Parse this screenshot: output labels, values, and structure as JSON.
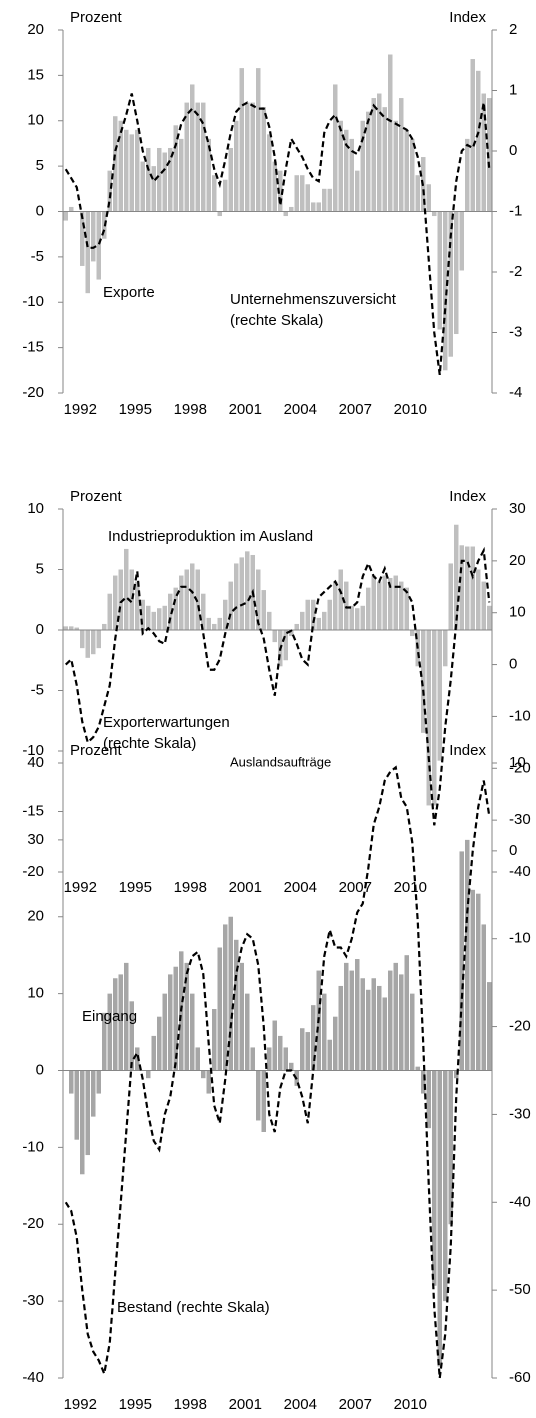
{
  "chart_data": [
    {
      "type": "combo",
      "left_axis_label": "Prozent",
      "right_axis_label": "Index",
      "categories": [
        null,
        null,
        null,
        "1992",
        null,
        null,
        null,
        null,
        null,
        null,
        null,
        null,
        null,
        "1995",
        null,
        null,
        null,
        null,
        null,
        null,
        null,
        null,
        null,
        "1998",
        null,
        null,
        null,
        null,
        null,
        null,
        null,
        null,
        null,
        "2001",
        null,
        null,
        null,
        null,
        null,
        null,
        null,
        null,
        null,
        "2004",
        null,
        null,
        null,
        null,
        null,
        null,
        null,
        null,
        null,
        "2007",
        null,
        null,
        null,
        null,
        null,
        null,
        null,
        null,
        null,
        "2010",
        null,
        null,
        null,
        null,
        null,
        null,
        null,
        null,
        null,
        null,
        null,
        null,
        null,
        null
      ],
      "ylim": [
        -20,
        20
      ],
      "yticks": [
        -20,
        -15,
        -10,
        -5,
        0,
        5,
        10,
        15,
        20
      ],
      "y2lim": [
        -4,
        2
      ],
      "y2ticks": [
        -4,
        -3,
        -2,
        -1,
        0,
        1,
        2
      ],
      "series": [
        {
          "name": "Exporte",
          "type": "bar",
          "color": "#bfbfbf",
          "values": [
            -1,
            0.5,
            0,
            -6,
            -9,
            -5.5,
            -7.5,
            -3,
            4.5,
            10.5,
            10,
            9,
            8.5,
            9,
            5.5,
            7,
            5,
            7,
            6.5,
            7,
            9.5,
            8,
            12,
            14,
            12,
            12,
            8,
            4,
            -0.5,
            3.5,
            7,
            10,
            15.8,
            12,
            12,
            15.8,
            11.5,
            8.5,
            5.5,
            4.5,
            -0.5,
            0.5,
            4,
            4,
            3,
            1,
            1,
            2.5,
            2.5,
            14,
            10,
            9,
            8,
            4.5,
            10,
            11,
            12.5,
            13,
            11.5,
            17.3,
            10,
            12.5,
            9,
            8,
            4,
            6,
            3,
            -0.5,
            -13,
            -17.5,
            -16,
            -13.5,
            -6.5,
            8,
            16.8,
            15.5,
            13,
            12.5
          ]
        },
        {
          "name": "Unternehmenszuversicht (rechte Skala)",
          "type": "line",
          "axis": "y2",
          "color": "#000000",
          "dashed": true,
          "values": [
            -0.3,
            -0.45,
            -0.6,
            -1.1,
            -1.6,
            -1.6,
            -1.55,
            -1.3,
            -0.8,
            0,
            0.3,
            0.6,
            0.95,
            0.5,
            0,
            -0.3,
            -0.5,
            -0.4,
            -0.3,
            -0.15,
            0.1,
            0.45,
            0.6,
            0.7,
            0.6,
            0.45,
            0.1,
            -0.3,
            -0.55,
            -0.15,
            0.3,
            0.65,
            0.75,
            0.8,
            0.75,
            0.7,
            0.7,
            0.4,
            -0.1,
            -0.9,
            -0.3,
            0.2,
            0.05,
            -0.1,
            -0.3,
            -0.45,
            -0.5,
            0.3,
            0.5,
            0.6,
            0.35,
            0.1,
            0,
            -0.05,
            0.2,
            0.5,
            0.75,
            0.65,
            0.55,
            0.5,
            0.45,
            0.4,
            0.35,
            0.2,
            -0.1,
            -0.6,
            -1.8,
            -3,
            -3.7,
            -2.6,
            -1.4,
            -0.5,
            0,
            0.1,
            0.05,
            0.3,
            0.8,
            -0.3
          ]
        }
      ]
    },
    {
      "type": "combo",
      "left_axis_label": "Prozent",
      "right_axis_label": "Index",
      "categories": [
        null,
        null,
        null,
        "1992",
        null,
        null,
        null,
        null,
        null,
        null,
        null,
        null,
        null,
        "1995",
        null,
        null,
        null,
        null,
        null,
        null,
        null,
        null,
        null,
        "1998",
        null,
        null,
        null,
        null,
        null,
        null,
        null,
        null,
        null,
        "2001",
        null,
        null,
        null,
        null,
        null,
        null,
        null,
        null,
        null,
        "2004",
        null,
        null,
        null,
        null,
        null,
        null,
        null,
        null,
        null,
        "2007",
        null,
        null,
        null,
        null,
        null,
        null,
        null,
        null,
        null,
        "2010",
        null,
        null,
        null,
        null,
        null,
        null,
        null,
        null,
        null,
        null,
        null,
        null,
        null,
        null
      ],
      "ylim": [
        -20,
        10
      ],
      "yticks": [
        -20,
        -15,
        -10,
        -5,
        0,
        5,
        10
      ],
      "y2lim": [
        -40,
        30
      ],
      "y2ticks": [
        -40,
        -30,
        -20,
        -10,
        0,
        10,
        20,
        30
      ],
      "series": [
        {
          "name": "Industrieproduktion im Ausland",
          "type": "bar",
          "color": "#bfbfbf",
          "values": [
            0.3,
            0.3,
            0.2,
            -1.5,
            -2.3,
            -2,
            -1.5,
            0.5,
            3,
            4.5,
            5,
            6.7,
            5,
            4,
            2.5,
            2,
            1.5,
            1.8,
            2,
            3,
            3.5,
            4.5,
            5,
            5.5,
            5,
            3,
            1,
            0.5,
            1,
            2.5,
            4,
            5.5,
            6,
            6.5,
            6.2,
            5,
            3.3,
            1.5,
            -1,
            -3,
            -2.5,
            -0.5,
            0.5,
            1.5,
            2.5,
            2.5,
            1,
            1.5,
            2.5,
            4,
            5,
            4,
            2,
            1.8,
            2,
            3.5,
            4.5,
            4,
            4.5,
            4.3,
            4.5,
            4,
            3.5,
            -0.5,
            -3,
            -8.5,
            -14.5,
            -14.5,
            -10.8,
            -3,
            5.5,
            8.7,
            7,
            6.9,
            6.9,
            5,
            4,
            2
          ]
        },
        {
          "name": "Exporterwartungen (rechte Skala)",
          "type": "line",
          "axis": "y2",
          "color": "#000000",
          "dashed": true,
          "values": [
            0,
            1,
            -4,
            -11,
            -15,
            -14,
            -12,
            -8,
            -4,
            5,
            12,
            13,
            12,
            18,
            6,
            7,
            6,
            4.5,
            4,
            9,
            13,
            15,
            15,
            14,
            12,
            6,
            -1,
            -1,
            1,
            6,
            10,
            11,
            11.5,
            12,
            14,
            8,
            5,
            -1,
            -6,
            3,
            6,
            6.5,
            4,
            1,
            0,
            8,
            13,
            14,
            15,
            16,
            14,
            11,
            11,
            12,
            17,
            19.5,
            17,
            16,
            18.5,
            15,
            15,
            15,
            14,
            12,
            3,
            -5,
            -18,
            -31,
            -24,
            -12,
            -3,
            8,
            20,
            20,
            17,
            20,
            22,
            12
          ]
        }
      ]
    },
    {
      "type": "combo",
      "title": "Auslandsaufträge",
      "left_axis_label": "Prozent",
      "right_axis_label": "Index",
      "categories": [
        null,
        null,
        null,
        "1992",
        null,
        null,
        null,
        null,
        null,
        null,
        null,
        null,
        null,
        "1995",
        null,
        null,
        null,
        null,
        null,
        null,
        null,
        null,
        null,
        "1998",
        null,
        null,
        null,
        null,
        null,
        null,
        null,
        null,
        null,
        "2001",
        null,
        null,
        null,
        null,
        null,
        null,
        null,
        null,
        null,
        "2004",
        null,
        null,
        null,
        null,
        null,
        null,
        null,
        null,
        null,
        "2007",
        null,
        null,
        null,
        null,
        null,
        null,
        null,
        null,
        null,
        "2010",
        null,
        null,
        null,
        null,
        null,
        null,
        null,
        null,
        null,
        null,
        null,
        null,
        null,
        null
      ],
      "ylim": [
        -40,
        40
      ],
      "yticks": [
        -40,
        -30,
        -20,
        -10,
        0,
        10,
        20,
        30,
        40
      ],
      "y2lim": [
        -60,
        10
      ],
      "y2ticks": [
        -60,
        -50,
        -40,
        -30,
        -20,
        -10,
        0,
        10
      ],
      "series": [
        {
          "name": "Eingang",
          "type": "bar",
          "color": "#a6a6a6",
          "values": [
            0,
            -3,
            -9,
            -13.5,
            -11,
            -6,
            -3,
            7.5,
            10,
            12,
            12.5,
            14,
            9,
            3,
            0,
            -1,
            4.5,
            7,
            10,
            12.5,
            13.5,
            15.5,
            14,
            10,
            3,
            -1,
            -3,
            8,
            16,
            19,
            20,
            17,
            14,
            10,
            3,
            -6.5,
            -8,
            3,
            6.5,
            4.5,
            3,
            1,
            -2,
            5.5,
            5,
            8.5,
            13,
            10,
            4,
            7,
            11,
            14,
            13,
            14.5,
            12,
            10.5,
            12,
            11,
            9.5,
            13,
            14,
            12.5,
            15,
            10,
            0.5,
            -3,
            -7.5,
            -28,
            -38.5,
            -30,
            -20,
            -1,
            28.5,
            30,
            23.5,
            23,
            19,
            11.5
          ]
        },
        {
          "name": "Bestand (rechte Skala)",
          "type": "line",
          "axis": "y2",
          "color": "#000000",
          "dashed": true,
          "values": [
            -40,
            -41,
            -44,
            -50,
            -55,
            -57,
            -58,
            -59.5,
            -56,
            -48,
            -40,
            -32,
            -24,
            -23,
            -26,
            -30,
            -33,
            -34,
            -30,
            -28,
            -24,
            -18,
            -14,
            -12,
            -11.5,
            -14,
            -22,
            -29,
            -31,
            -26,
            -20,
            -14,
            -11,
            -9.5,
            -10,
            -13,
            -20,
            -30,
            -32,
            -27,
            -25,
            -25,
            -26,
            -28,
            -31,
            -25,
            -19,
            -12,
            -9,
            -11,
            -11,
            -12,
            -10,
            -7,
            -6,
            -2,
            3,
            5,
            8,
            9,
            9.5,
            6,
            5,
            1,
            -8,
            -22,
            -38,
            -52,
            -60,
            -55,
            -45,
            -28,
            -17,
            -7,
            0,
            5,
            8,
            4
          ]
        }
      ]
    }
  ]
}
